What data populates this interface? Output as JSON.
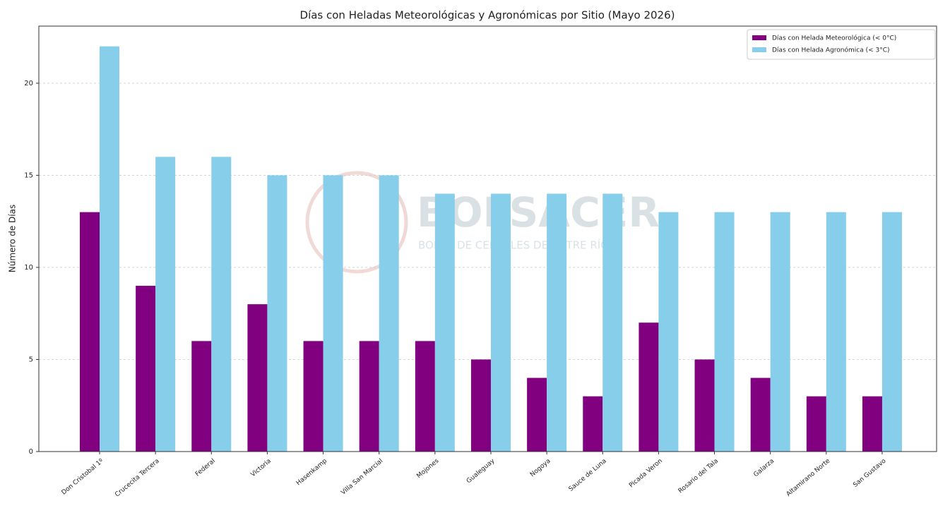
{
  "chart_data": {
    "type": "bar",
    "title": "Días con Heladas Meteorológicas y Agronómicas por Sitio (Mayo 2026)",
    "y_label": "Número de Días",
    "categories": [
      "Don Cristobal 1º",
      "Crucecita Tercera",
      "Federal",
      "Victoria",
      "Hasenkamp",
      "Villa San Marcial",
      "Mojones",
      "Gualeguay",
      "Nogoya",
      "Sauce de Luna",
      "Picada Veron",
      "Rosario del Tala",
      "Galarza",
      "Altamirano Norte",
      "San Gustavo"
    ],
    "series": [
      {
        "name": "Días con Helada Meteorológica (< 0°C)",
        "color": "#800080",
        "values": [
          13,
          9,
          6,
          8,
          6,
          6,
          6,
          5,
          4,
          3,
          7,
          5,
          4,
          3,
          3
        ]
      },
      {
        "name": "Días con Helada Agronómica (< 3°C)",
        "color": "#87ceeb",
        "values": [
          22,
          16,
          16,
          15,
          15,
          15,
          14,
          14,
          14,
          14,
          13,
          13,
          13,
          13,
          13
        ]
      }
    ],
    "ylim": [
      0,
      23.1
    ],
    "yticks": [
      0,
      5,
      10,
      15,
      20
    ],
    "grid": true,
    "legend": "upper right",
    "watermark": {
      "title": "BOLSACER",
      "subtitle": "BOLSA DE CEREALES DE ENTRE RÍOS"
    }
  }
}
